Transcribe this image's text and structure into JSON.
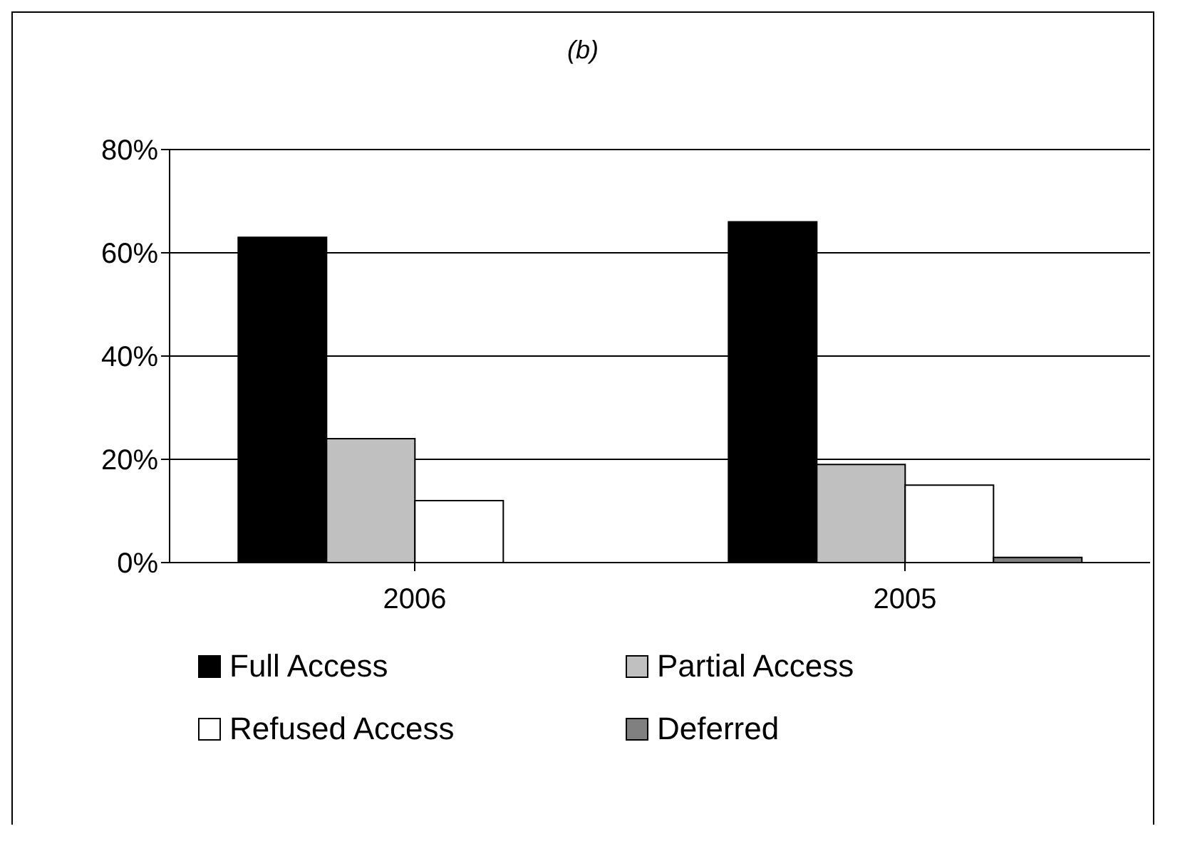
{
  "chart_data": {
    "type": "bar",
    "title": "(b)",
    "categories": [
      "2006",
      "2005"
    ],
    "series": [
      {
        "name": "Full Access",
        "color": "#000000",
        "values": [
          63,
          66
        ]
      },
      {
        "name": "Partial Access",
        "color": "#c0c0c0",
        "values": [
          24,
          19
        ]
      },
      {
        "name": "Refused Access",
        "color": "#ffffff",
        "values": [
          12,
          15
        ]
      },
      {
        "name": "Deferred",
        "color": "#808080",
        "values": [
          0,
          1
        ]
      }
    ],
    "ylim": [
      0,
      80
    ],
    "yticks": [
      {
        "value": 0,
        "label": "0%"
      },
      {
        "value": 20,
        "label": "20%"
      },
      {
        "value": 40,
        "label": "40%"
      },
      {
        "value": 60,
        "label": "60%"
      },
      {
        "value": 80,
        "label": "80%"
      }
    ],
    "grid": "y",
    "legend": "bottom"
  }
}
